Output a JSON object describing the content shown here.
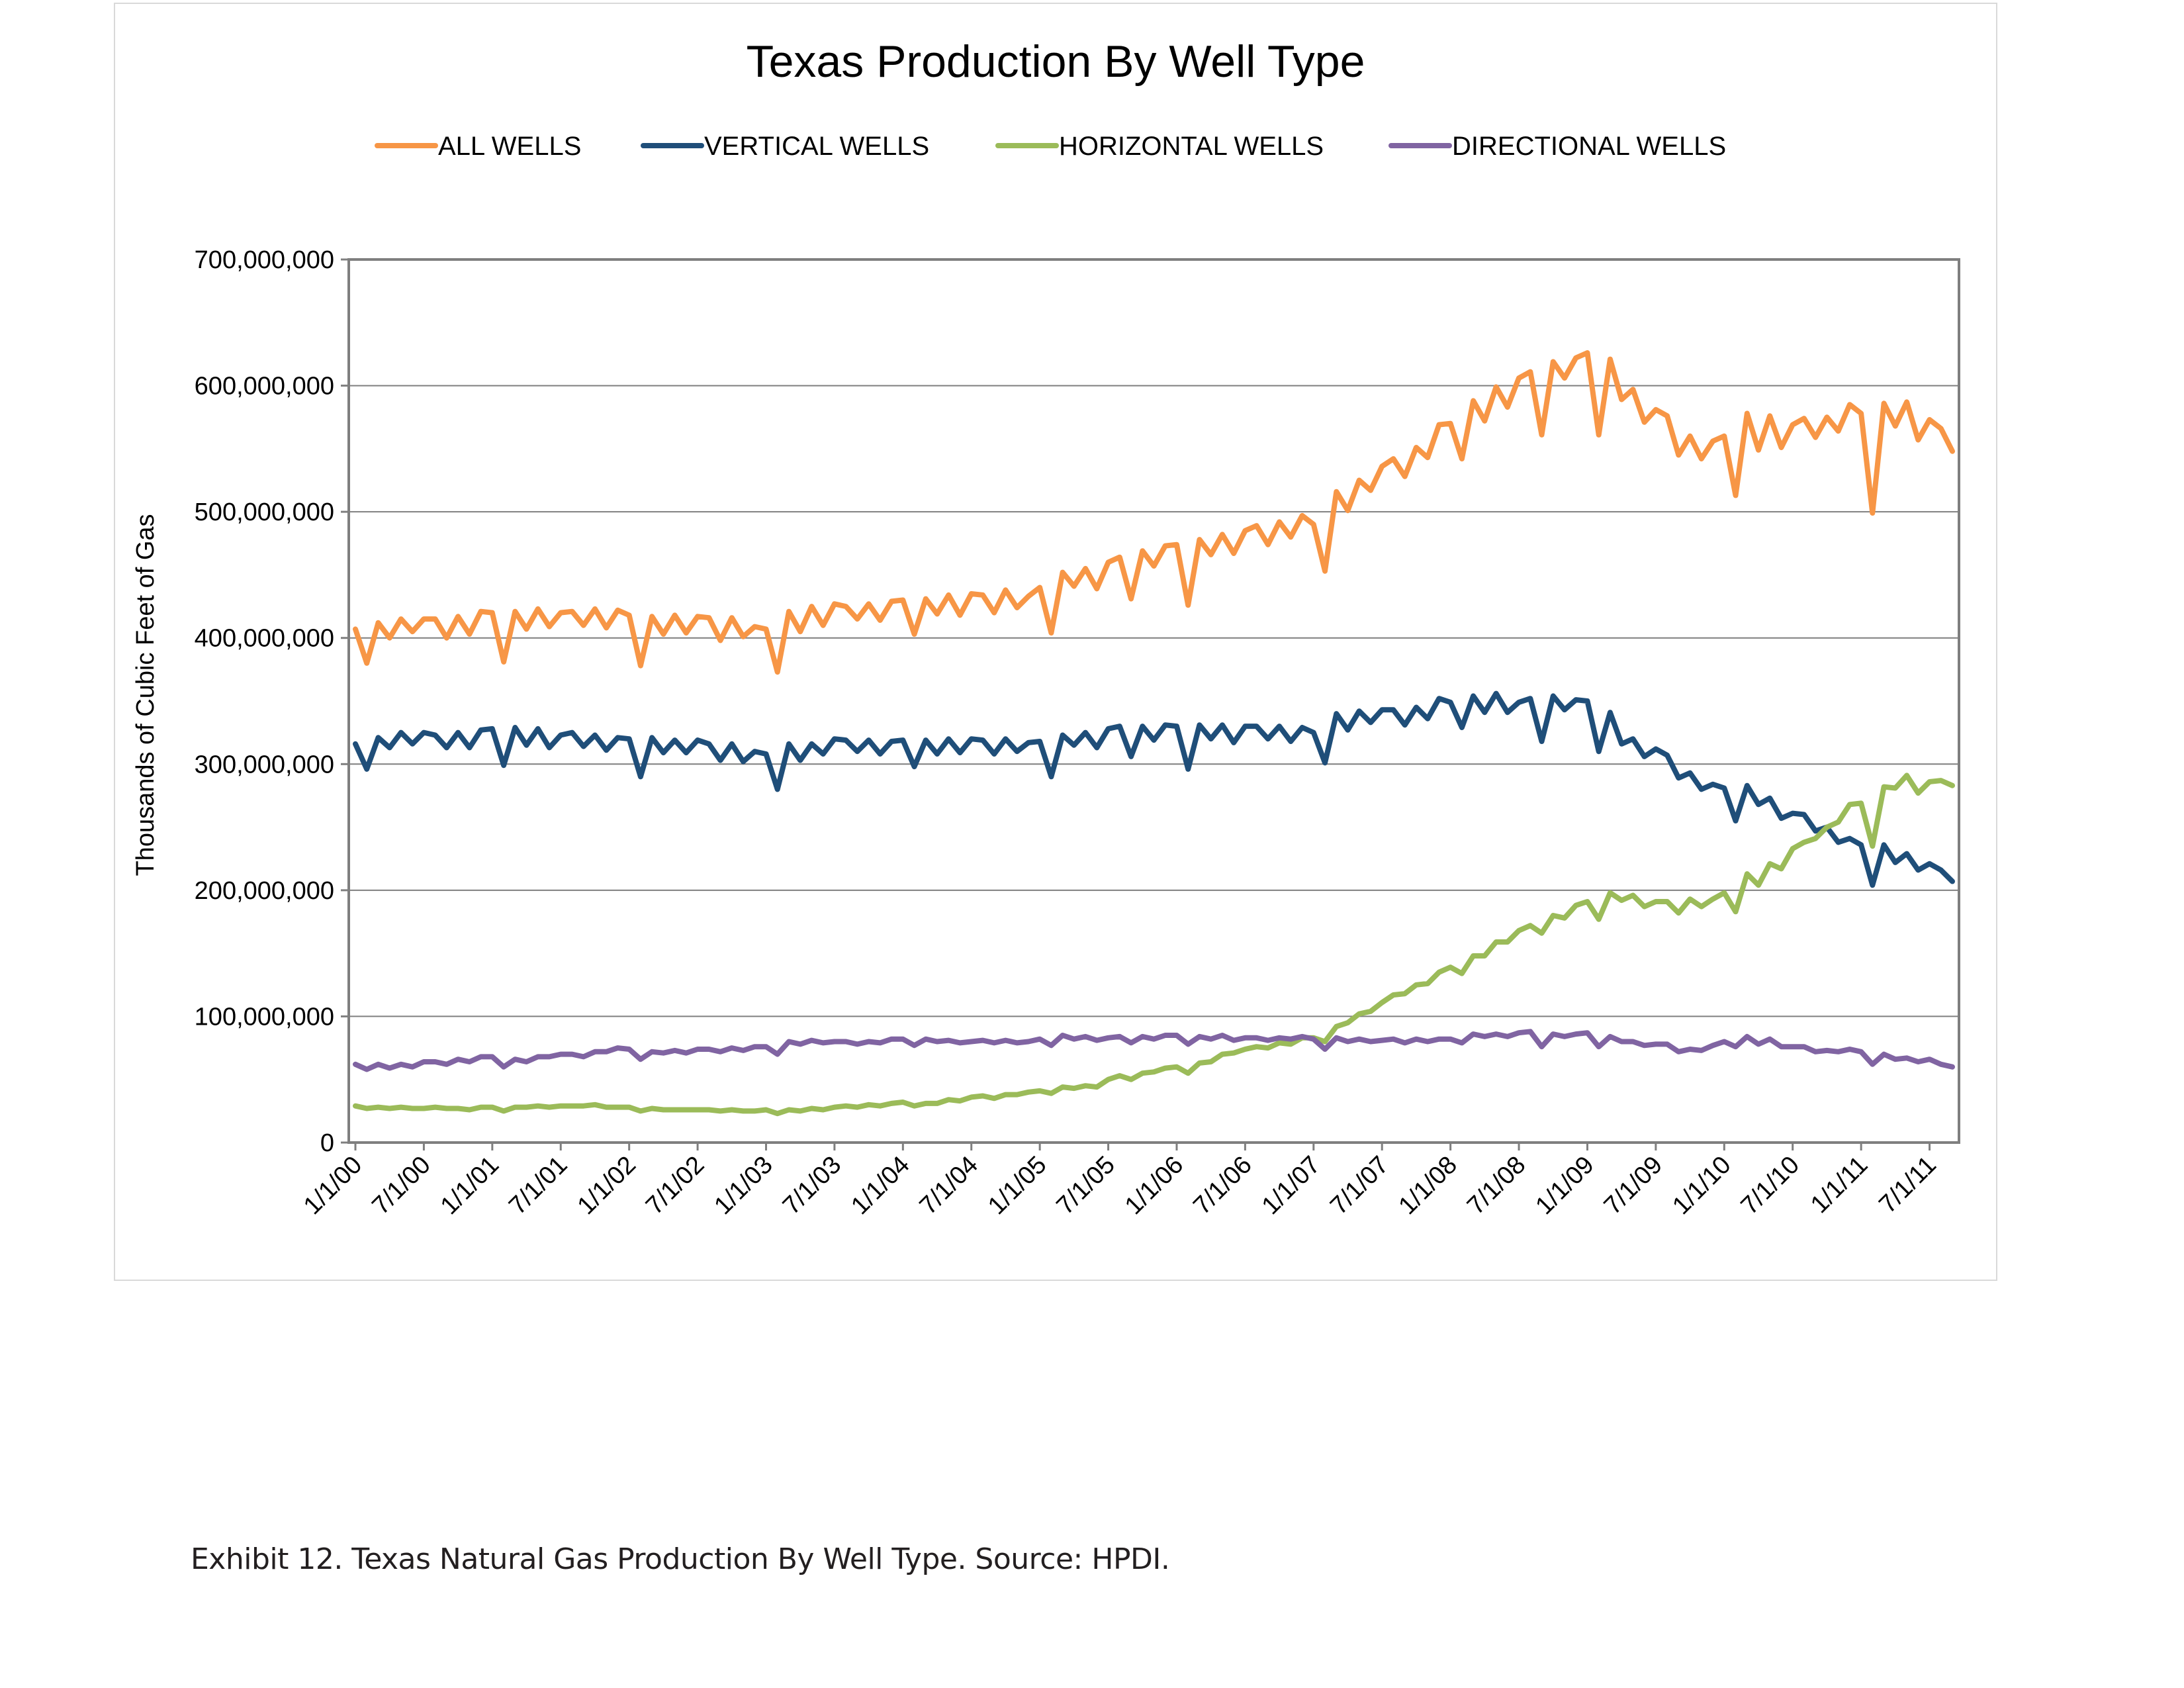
{
  "chart_data": {
    "type": "line",
    "title": "Texas Production By Well Type",
    "ylabel": "Thousands of Cubic Feet of Gas",
    "xlabel": "",
    "ylim": [
      0,
      700000000
    ],
    "yticks": [
      0,
      100000000,
      200000000,
      300000000,
      400000000,
      500000000,
      600000000,
      700000000
    ],
    "ytick_labels": [
      "0",
      "100,000,000",
      "200,000,000",
      "300,000,000",
      "400,000,000",
      "500,000,000",
      "600,000,000",
      "700,000,000"
    ],
    "xtick_labels": [
      "1/1/00",
      "7/1/00",
      "1/1/01",
      "7/1/01",
      "1/1/02",
      "7/1/02",
      "1/1/03",
      "7/1/03",
      "1/1/04",
      "7/1/04",
      "1/1/05",
      "7/1/05",
      "1/1/06",
      "7/1/06",
      "1/1/07",
      "7/1/07",
      "1/1/08",
      "7/1/08",
      "1/1/09",
      "7/1/09",
      "1/1/10",
      "7/1/10",
      "1/1/11",
      "7/1/11"
    ],
    "x_period": "monthly, January 2000 through September 2011",
    "grid": true,
    "legend_position": "top",
    "series": [
      {
        "name": "ALL WELLS",
        "color": "#f79646",
        "values": [
          407,
          380,
          412,
          400,
          415,
          405,
          415,
          415,
          400,
          417,
          403,
          421,
          420,
          381,
          421,
          407,
          423,
          409,
          420,
          421,
          410,
          423,
          408,
          422,
          418,
          378,
          417,
          403,
          418,
          404,
          417,
          416,
          398,
          416,
          401,
          409,
          407,
          373,
          421,
          405,
          425,
          410,
          427,
          425,
          415,
          427,
          414,
          429,
          430,
          403,
          431,
          419,
          434,
          418,
          435,
          434,
          420,
          438,
          424,
          433,
          440,
          404,
          452,
          441,
          455,
          439,
          460,
          464,
          431,
          469,
          457,
          473,
          474,
          426,
          478,
          466,
          482,
          467,
          485,
          489,
          474,
          492,
          480,
          497,
          490,
          453,
          516,
          501,
          525,
          517,
          536,
          542,
          528,
          551,
          543,
          569,
          570,
          542,
          588,
          572,
          599,
          583,
          606,
          611,
          561,
          619,
          606,
          622,
          626,
          561,
          621,
          589,
          597,
          571,
          581,
          576,
          545,
          560,
          542,
          556,
          560,
          513,
          578,
          549,
          576,
          551,
          569,
          574,
          559,
          575,
          564,
          585,
          578,
          499,
          586,
          568,
          587,
          557,
          573,
          566,
          548
        ]
      },
      {
        "name": "VERTICAL WELLS",
        "color": "#1f4e79",
        "values": [
          316,
          296,
          321,
          313,
          325,
          316,
          325,
          323,
          313,
          325,
          313,
          327,
          328,
          299,
          329,
          315,
          328,
          313,
          323,
          325,
          314,
          323,
          311,
          321,
          320,
          290,
          321,
          309,
          319,
          309,
          319,
          316,
          303,
          316,
          302,
          310,
          308,
          280,
          316,
          303,
          316,
          308,
          320,
          319,
          310,
          319,
          308,
          318,
          319,
          298,
          319,
          308,
          320,
          309,
          320,
          319,
          308,
          320,
          310,
          317,
          318,
          290,
          323,
          315,
          325,
          313,
          328,
          330,
          306,
          330,
          319,
          331,
          330,
          296,
          331,
          320,
          331,
          317,
          330,
          330,
          320,
          330,
          318,
          329,
          325,
          301,
          340,
          327,
          342,
          333,
          343,
          343,
          331,
          345,
          336,
          352,
          349,
          329,
          354,
          341,
          356,
          341,
          349,
          352,
          318,
          354,
          343,
          351,
          350,
          310,
          341,
          316,
          320,
          306,
          312,
          307,
          289,
          293,
          280,
          284,
          281,
          255,
          283,
          268,
          273,
          257,
          261,
          260,
          247,
          250,
          238,
          241,
          236,
          204,
          236,
          222,
          229,
          216,
          221,
          216,
          207
        ]
      },
      {
        "name": "HORIZONTAL WELLS",
        "color": "#9bbb59",
        "values": [
          29,
          27,
          28,
          27,
          28,
          27,
          27,
          28,
          27,
          27,
          26,
          28,
          28,
          25,
          28,
          28,
          29,
          28,
          29,
          29,
          29,
          30,
          28,
          28,
          28,
          25,
          27,
          26,
          26,
          26,
          26,
          26,
          25,
          26,
          25,
          25,
          26,
          23,
          26,
          25,
          27,
          26,
          28,
          29,
          28,
          30,
          29,
          31,
          32,
          29,
          31,
          31,
          34,
          33,
          36,
          37,
          35,
          38,
          38,
          40,
          41,
          39,
          44,
          43,
          45,
          44,
          50,
          53,
          50,
          55,
          56,
          59,
          60,
          55,
          63,
          64,
          70,
          71,
          74,
          76,
          75,
          79,
          78,
          83,
          83,
          80,
          92,
          95,
          102,
          104,
          111,
          117,
          118,
          125,
          126,
          135,
          139,
          134,
          148,
          148,
          159,
          159,
          168,
          172,
          166,
          180,
          178,
          188,
          191,
          177,
          198,
          192,
          196,
          187,
          191,
          191,
          182,
          193,
          187,
          193,
          198,
          183,
          213,
          204,
          221,
          217,
          233,
          238,
          241,
          250,
          254,
          268,
          269,
          235,
          282,
          281,
          291,
          277,
          286,
          287,
          283
        ]
      },
      {
        "name": "DIRECTIONAL WELLS",
        "color": "#8064a2",
        "values": [
          62,
          58,
          62,
          59,
          62,
          60,
          64,
          64,
          62,
          66,
          64,
          68,
          68,
          60,
          66,
          64,
          68,
          68,
          70,
          70,
          68,
          72,
          72,
          75,
          74,
          66,
          72,
          71,
          73,
          71,
          74,
          74,
          72,
          75,
          73,
          76,
          76,
          70,
          80,
          78,
          81,
          79,
          80,
          80,
          78,
          80,
          79,
          82,
          82,
          77,
          82,
          80,
          81,
          79,
          80,
          81,
          79,
          81,
          79,
          80,
          82,
          77,
          85,
          82,
          84,
          81,
          83,
          84,
          79,
          84,
          82,
          85,
          85,
          78,
          84,
          82,
          85,
          81,
          83,
          83,
          81,
          83,
          82,
          84,
          82,
          74,
          83,
          80,
          82,
          80,
          81,
          82,
          79,
          82,
          80,
          82,
          82,
          79,
          86,
          84,
          86,
          84,
          87,
          88,
          76,
          86,
          84,
          86,
          87,
          76,
          84,
          80,
          80,
          77,
          78,
          78,
          72,
          74,
          73,
          77,
          80,
          76,
          84,
          78,
          82,
          76,
          76,
          76,
          72,
          73,
          72,
          74,
          72,
          62,
          70,
          66,
          67,
          64,
          66,
          62,
          60
        ]
      }
    ],
    "series_units_note": "values in millions of Mcf"
  },
  "caption": "Exhibit 12.  Texas Natural Gas Production By Well Type.   Source:  HPDI."
}
